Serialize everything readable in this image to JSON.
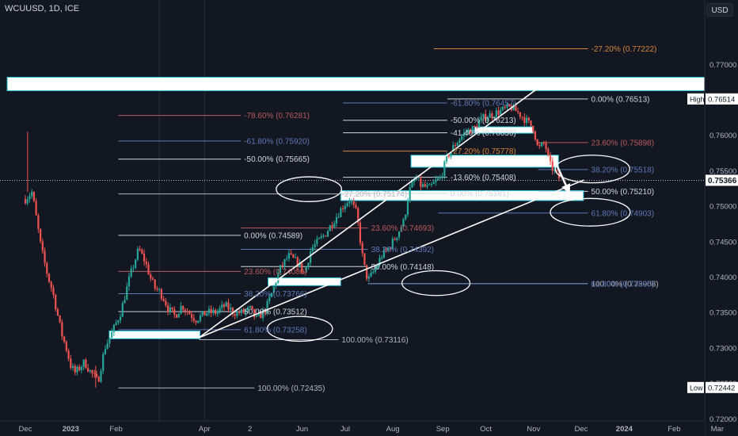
{
  "header": {
    "symbol": "WCUUSD, 1D, ICE",
    "currency_button": "USD"
  },
  "chart_data": {
    "type": "candlestick",
    "title": "WCUUSD, 1D, ICE",
    "ylim": [
      0.7197,
      0.7791
    ],
    "y_ticks": [
      "0.77000",
      "0.76500",
      "0.76000",
      "0.75500",
      "0.75000",
      "0.74500",
      "0.74000",
      "0.73500",
      "0.73000",
      "0.72500",
      "0.72000"
    ],
    "x_ticks": [
      {
        "label": "Dec",
        "t": 0
      },
      {
        "label": "2023",
        "t": 1
      },
      {
        "label": "Feb",
        "t": 2
      },
      {
        "label": "Apr",
        "t": 3.95
      },
      {
        "label": "2",
        "t": 4.95
      },
      {
        "label": "Jun",
        "t": 6.1
      },
      {
        "label": "Jul",
        "t": 7.05
      },
      {
        "label": "Aug",
        "t": 8.1
      },
      {
        "label": "Sep",
        "t": 9.2
      },
      {
        "label": "Oct",
        "t": 10.15
      },
      {
        "label": "Nov",
        "t": 11.2
      },
      {
        "label": "Dec",
        "t": 12.25
      },
      {
        "label": "2024",
        "t": 13.2
      },
      {
        "label": "Feb",
        "t": 14.3
      },
      {
        "label": "Mar",
        "t": 15.25
      }
    ],
    "x_grid": [
      2.95,
      3.95
    ],
    "price_labels": [
      {
        "text": "High",
        "value": "0.76514",
        "y": 0.76514,
        "style": "hl"
      },
      {
        "text": "",
        "value": "0.75366",
        "y": 0.75366,
        "style": "last"
      },
      {
        "text": "Low",
        "value": "0.72442",
        "y": 0.72442,
        "style": "hl"
      }
    ],
    "current_price": 0.75366,
    "candle_path": [
      [
        0,
        0.751
      ],
      [
        0.15,
        0.752
      ],
      [
        0.25,
        0.748
      ],
      [
        0.35,
        0.744
      ],
      [
        0.5,
        0.74
      ],
      [
        0.6,
        0.738
      ],
      [
        0.7,
        0.735
      ],
      [
        0.8,
        0.732
      ],
      [
        0.9,
        0.73
      ],
      [
        1.0,
        0.7275
      ],
      [
        1.1,
        0.7265
      ],
      [
        1.3,
        0.728
      ],
      [
        1.45,
        0.7265
      ],
      [
        1.6,
        0.7252
      ],
      [
        1.75,
        0.73
      ],
      [
        1.9,
        0.732
      ],
      [
        2.1,
        0.735
      ],
      [
        2.3,
        0.74
      ],
      [
        2.5,
        0.744
      ],
      [
        2.65,
        0.742
      ],
      [
        2.75,
        0.74
      ],
      [
        2.85,
        0.7385
      ],
      [
        2.95,
        0.738
      ],
      [
        3.05,
        0.737
      ],
      [
        3.15,
        0.7355
      ],
      [
        3.3,
        0.7345
      ],
      [
        3.45,
        0.736
      ],
      [
        3.6,
        0.735
      ],
      [
        3.75,
        0.734
      ],
      [
        4.0,
        0.735
      ],
      [
        4.2,
        0.735
      ],
      [
        4.4,
        0.736
      ],
      [
        4.6,
        0.735
      ],
      [
        4.8,
        0.735
      ],
      [
        4.95,
        0.7355
      ],
      [
        5.1,
        0.734
      ],
      [
        5.3,
        0.7355
      ],
      [
        5.45,
        0.738
      ],
      [
        5.6,
        0.741
      ],
      [
        5.8,
        0.743
      ],
      [
        6.0,
        0.742
      ],
      [
        6.15,
        0.7405
      ],
      [
        6.3,
        0.744
      ],
      [
        6.45,
        0.745
      ],
      [
        6.6,
        0.746
      ],
      [
        6.7,
        0.747
      ],
      [
        6.85,
        0.7485
      ],
      [
        7.0,
        0.75
      ],
      [
        7.15,
        0.751
      ],
      [
        7.3,
        0.749
      ],
      [
        7.45,
        0.742
      ],
      [
        7.55,
        0.7395
      ],
      [
        7.7,
        0.741
      ],
      [
        7.85,
        0.743
      ],
      [
        8.0,
        0.744
      ],
      [
        8.15,
        0.7455
      ],
      [
        8.35,
        0.748
      ],
      [
        8.45,
        0.752
      ],
      [
        8.6,
        0.754
      ],
      [
        8.7,
        0.753
      ],
      [
        8.9,
        0.7525
      ],
      [
        9.05,
        0.7535
      ],
      [
        9.15,
        0.754
      ],
      [
        9.3,
        0.757
      ],
      [
        9.5,
        0.759
      ],
      [
        9.7,
        0.7605
      ],
      [
        9.9,
        0.761
      ],
      [
        10.0,
        0.762
      ],
      [
        10.1,
        0.7625
      ],
      [
        10.3,
        0.763
      ],
      [
        10.5,
        0.7635
      ],
      [
        10.7,
        0.764
      ],
      [
        10.9,
        0.763
      ],
      [
        11.05,
        0.762
      ],
      [
        11.2,
        0.761
      ],
      [
        11.3,
        0.758
      ],
      [
        11.45,
        0.759
      ],
      [
        11.55,
        0.756
      ],
      [
        11.7,
        0.7545
      ],
      [
        11.8,
        0.7537
      ]
    ],
    "trendlines": [
      {
        "name": "upper",
        "from": [
          3.83,
          0.73146
        ],
        "to": [
          11.35,
          0.7669
        ]
      },
      {
        "name": "lower",
        "from": [
          3.83,
          0.73146
        ],
        "to": [
          12.31,
          0.7537
        ]
      }
    ],
    "arrow": {
      "from": [
        11.72,
        0.7557
      ],
      "to": [
        12.0,
        0.75175
      ]
    },
    "horizontal_lines": [
      {
        "x1": 2.05,
        "x2": 5.05,
        "y": 0.72435,
        "color": "#b2b5be",
        "label": "100.00% (0.72435)"
      },
      {
        "x1": 2.05,
        "x2": 4.75,
        "y": 0.73258,
        "color": "#5b79b8",
        "label": "61.80% (0.73258)"
      },
      {
        "x1": 2.05,
        "x2": 4.75,
        "y": 0.73512,
        "color": "#d1d4dc",
        "label": "50.00% (0.73512)"
      },
      {
        "x1": 2.05,
        "x2": 4.75,
        "y": 0.73766,
        "color": "#5b79b8",
        "label": "38.20% (0.73766)"
      },
      {
        "x1": 2.05,
        "x2": 4.75,
        "y": 0.7408,
        "color": "#b85a5a",
        "label": "23.60% (0.74080)"
      },
      {
        "x1": 2.05,
        "x2": 4.75,
        "y": 0.74589,
        "color": "#d1d4dc",
        "label": "0.00% (0.74589)"
      },
      {
        "x1": 3.83,
        "x2": 6.9,
        "y": 0.73116,
        "color": "#b2b5be",
        "label": "100.00% (0.73116)"
      },
      {
        "x1": 4.75,
        "x2": 7.55,
        "y": 0.74148,
        "color": "#d1d4dc",
        "label": "50.00% (0.74148)"
      },
      {
        "x1": 4.75,
        "x2": 7.55,
        "y": 0.74392,
        "color": "#5b79b8",
        "label": "38.20% (0.74392)"
      },
      {
        "x1": 4.75,
        "x2": 7.55,
        "y": 0.74693,
        "color": "#b85a5a",
        "label": "23.60% (0.74693)"
      },
      {
        "x1": 2.05,
        "x2": 6.9,
        "y": 0.75174,
        "color": "#b2b5be",
        "label": "-27.20% (0.75174)"
      },
      {
        "x1": 2.05,
        "x2": 4.75,
        "y": 0.75665,
        "color": "#d1d4dc",
        "label": "-50.00% (0.75665)"
      },
      {
        "x1": 2.05,
        "x2": 4.75,
        "y": 0.7592,
        "color": "#5b79b8",
        "label": "-61.80% (0.75920)"
      },
      {
        "x1": 2.05,
        "x2": 4.75,
        "y": 0.76281,
        "color": "#b85a5a",
        "label": "-78.60% (0.76281)"
      },
      {
        "x1": 7.0,
        "x2": 9.3,
        "y": 0.75181,
        "color": "#d1d4dc",
        "label": "0.00% (0.75181)"
      },
      {
        "x1": 7.0,
        "x2": 9.3,
        "y": 0.75408,
        "color": "#d1d4dc",
        "label": "-13.60% (0.75408)"
      },
      {
        "x1": 7.0,
        "x2": 9.3,
        "y": 0.75778,
        "color": "#d4863c",
        "label": "-27.20% (0.75778)"
      },
      {
        "x1": 7.0,
        "x2": 9.3,
        "y": 0.76036,
        "color": "#d1d4dc",
        "label": "-41.40% (0.76036)"
      },
      {
        "x1": 7.0,
        "x2": 9.3,
        "y": 0.76213,
        "color": "#d1d4dc",
        "label": "-50.00% (0.76213)"
      },
      {
        "x1": 7.0,
        "x2": 9.3,
        "y": 0.76457,
        "color": "#5b79b8",
        "label": "-61.80% (0.76457)"
      },
      {
        "x1": 9.0,
        "x2": 12.4,
        "y": 0.77222,
        "color": "#d4863c",
        "label": "-27.20% (0.77222)"
      },
      {
        "x1": 7.55,
        "x2": 12.4,
        "y": 0.73908,
        "color": "#b2b5be",
        "label": "100.00% (0.73908)"
      },
      {
        "x1": 7.55,
        "x2": 12.4,
        "y": 0.73905,
        "color": "#5b79b8",
        "label": "61.80% (0.73905)"
      },
      {
        "x1": 9.1,
        "x2": 12.4,
        "y": 0.74903,
        "color": "#5b79b8",
        "label": "61.80% (0.74903)"
      },
      {
        "x1": 11.3,
        "x2": 12.4,
        "y": 0.7521,
        "color": "#d1d4dc",
        "label": "50.00% (0.75210)"
      },
      {
        "x1": 11.3,
        "x2": 12.4,
        "y": 0.75518,
        "color": "#5b79b8",
        "label": "38.20% (0.75518)"
      },
      {
        "x1": 11.3,
        "x2": 12.4,
        "y": 0.75898,
        "color": "#b85a5a",
        "label": "23.60% (0.75898)"
      },
      {
        "x1": 9.3,
        "x2": 12.4,
        "y": 0.76513,
        "color": "#d1d4dc",
        "label": "0.00% (0.76513)"
      }
    ],
    "zones": [
      {
        "x1": -0.4,
        "x2": 16.0,
        "top": 0.7682,
        "bottom": 0.7663
      },
      {
        "x1": 1.85,
        "x2": 3.85,
        "top": 0.7324,
        "bottom": 0.7313
      },
      {
        "x1": 5.35,
        "x2": 6.95,
        "top": 0.7399,
        "bottom": 0.7388
      },
      {
        "x1": 6.95,
        "x2": 12.3,
        "top": 0.7522,
        "bottom": 0.7508
      },
      {
        "x1": 8.5,
        "x2": 11.75,
        "top": 0.7572,
        "bottom": 0.7555
      },
      {
        "x1": 9.9,
        "x2": 11.2,
        "top": 0.7612,
        "bottom": 0.7603
      }
    ],
    "ellipses": [
      {
        "cx": 6.25,
        "cy": 0.7524,
        "rx": 0.72,
        "ry": 0.00175
      },
      {
        "cx": 6.05,
        "cy": 0.7327,
        "rx": 0.72,
        "ry": 0.00175
      },
      {
        "cx": 9.05,
        "cy": 0.73915,
        "rx": 0.75,
        "ry": 0.00175
      },
      {
        "cx": 12.5,
        "cy": 0.75525,
        "rx": 0.82,
        "ry": 0.00195
      },
      {
        "cx": 12.45,
        "cy": 0.74915,
        "rx": 0.88,
        "ry": 0.00195
      }
    ]
  }
}
